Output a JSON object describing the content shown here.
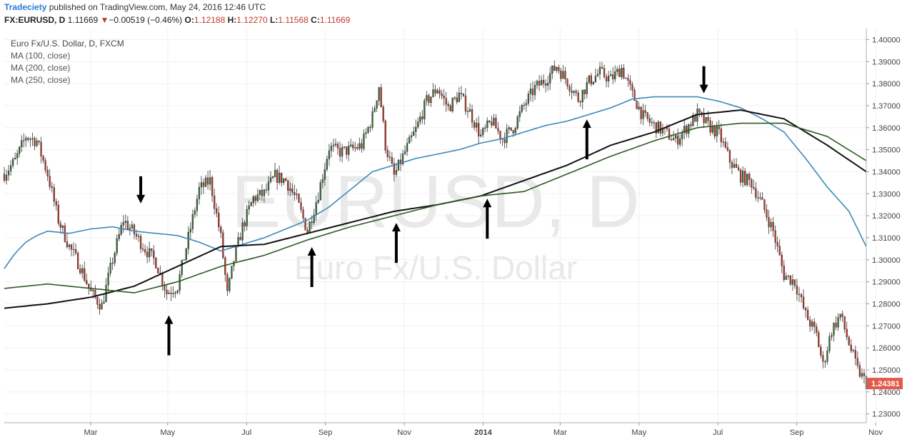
{
  "header": {
    "brand": "Tradeciety",
    "published": "published on TradingView.com, May 24, 2016 12:46 UTC",
    "symbol": "FX:EURUSD, D",
    "last": "1.11669",
    "change": "−0.00519 (−0.46%)",
    "o_label": "O:",
    "o_value": "1.12188",
    "h_label": "H:",
    "h_value": "1.12270",
    "l_label": "L:",
    "l_value": "1.11568",
    "c_label": "C:",
    "c_value": "1.11669"
  },
  "legend": {
    "title": "Euro Fx/U.S. Dollar, D, FXCM",
    "ma1": "MA (100, close)",
    "ma2": "MA (200, close)",
    "ma3": "MA (250, close)"
  },
  "watermark": {
    "line1": "EURUSD, D",
    "line2": "Euro Fx/U.S. Dollar"
  },
  "colors": {
    "up": "#3c6e3c",
    "down": "#c0392b",
    "ma100": "#3d8ab8",
    "ma200": "#111111",
    "ma250": "#2e5a22",
    "price_tag": "#e25b4a"
  },
  "chart_data": {
    "type": "line",
    "price_label": "1.24381",
    "y_ticks": [
      "1.40000",
      "1.39000",
      "1.38000",
      "1.37000",
      "1.36000",
      "1.35000",
      "1.34000",
      "1.33000",
      "1.32000",
      "1.31000",
      "1.30000",
      "1.29000",
      "1.28000",
      "1.27000",
      "1.26000",
      "1.25000",
      "1.24000",
      "1.23000"
    ],
    "ylim": [
      1.226,
      1.405
    ],
    "x_ticks": [
      "Mar",
      "May",
      "Jul",
      "Sep",
      "Nov",
      "2014",
      "Mar",
      "May",
      "Jul",
      "Sep",
      "Nov"
    ],
    "grid": true,
    "series": [
      {
        "name": "MA (100, close)",
        "points": [
          [
            0,
            1.296
          ],
          [
            5,
            1.303
          ],
          [
            10,
            1.308
          ],
          [
            15,
            1.311
          ],
          [
            20,
            1.313
          ],
          [
            30,
            1.312
          ],
          [
            40,
            1.314
          ],
          [
            50,
            1.315
          ],
          [
            60,
            1.313
          ],
          [
            70,
            1.312
          ],
          [
            80,
            1.311
          ],
          [
            90,
            1.308
          ],
          [
            100,
            1.304
          ],
          [
            110,
            1.307
          ],
          [
            120,
            1.31
          ],
          [
            130,
            1.314
          ],
          [
            140,
            1.318
          ],
          [
            150,
            1.324
          ],
          [
            160,
            1.332
          ],
          [
            170,
            1.34
          ],
          [
            180,
            1.343
          ],
          [
            190,
            1.346
          ],
          [
            200,
            1.348
          ],
          [
            210,
            1.35
          ],
          [
            220,
            1.353
          ],
          [
            230,
            1.355
          ],
          [
            240,
            1.358
          ],
          [
            250,
            1.361
          ],
          [
            260,
            1.363
          ],
          [
            270,
            1.366
          ],
          [
            280,
            1.369
          ],
          [
            290,
            1.373
          ],
          [
            300,
            1.374
          ],
          [
            310,
            1.374
          ],
          [
            320,
            1.374
          ],
          [
            330,
            1.372
          ],
          [
            340,
            1.369
          ],
          [
            350,
            1.364
          ],
          [
            360,
            1.358
          ],
          [
            370,
            1.346
          ],
          [
            380,
            1.333
          ],
          [
            390,
            1.322
          ],
          [
            398,
            1.306
          ]
        ]
      },
      {
        "name": "MA (200, close)",
        "points": [
          [
            0,
            1.278
          ],
          [
            20,
            1.28
          ],
          [
            40,
            1.283
          ],
          [
            60,
            1.288
          ],
          [
            80,
            1.297
          ],
          [
            100,
            1.306
          ],
          [
            120,
            1.307
          ],
          [
            140,
            1.312
          ],
          [
            160,
            1.317
          ],
          [
            180,
            1.322
          ],
          [
            200,
            1.325
          ],
          [
            220,
            1.329
          ],
          [
            240,
            1.336
          ],
          [
            260,
            1.343
          ],
          [
            280,
            1.352
          ],
          [
            300,
            1.358
          ],
          [
            320,
            1.366
          ],
          [
            340,
            1.368
          ],
          [
            360,
            1.364
          ],
          [
            380,
            1.352
          ],
          [
            398,
            1.34
          ]
        ]
      },
      {
        "name": "MA (250, close)",
        "points": [
          [
            0,
            1.287
          ],
          [
            20,
            1.289
          ],
          [
            40,
            1.287
          ],
          [
            60,
            1.285
          ],
          [
            80,
            1.29
          ],
          [
            100,
            1.297
          ],
          [
            120,
            1.302
          ],
          [
            140,
            1.309
          ],
          [
            160,
            1.315
          ],
          [
            180,
            1.32
          ],
          [
            200,
            1.325
          ],
          [
            220,
            1.329
          ],
          [
            240,
            1.331
          ],
          [
            260,
            1.339
          ],
          [
            280,
            1.347
          ],
          [
            300,
            1.354
          ],
          [
            320,
            1.36
          ],
          [
            340,
            1.362
          ],
          [
            360,
            1.362
          ],
          [
            380,
            1.356
          ],
          [
            398,
            1.345
          ]
        ]
      },
      {
        "name": "Price",
        "points": [
          [
            0,
            1.339
          ],
          [
            5,
            1.345
          ],
          [
            10,
            1.356
          ],
          [
            15,
            1.354
          ],
          [
            20,
            1.339
          ],
          [
            25,
            1.318
          ],
          [
            30,
            1.306
          ],
          [
            35,
            1.297
          ],
          [
            40,
            1.285
          ],
          [
            45,
            1.279
          ],
          [
            50,
            1.3
          ],
          [
            55,
            1.318
          ],
          [
            60,
            1.312
          ],
          [
            65,
            1.305
          ],
          [
            70,
            1.299
          ],
          [
            75,
            1.285
          ],
          [
            80,
            1.288
          ],
          [
            85,
            1.31
          ],
          [
            90,
            1.332
          ],
          [
            95,
            1.336
          ],
          [
            100,
            1.31
          ],
          [
            103,
            1.284
          ],
          [
            106,
            1.3
          ],
          [
            110,
            1.315
          ],
          [
            115,
            1.328
          ],
          [
            120,
            1.33
          ],
          [
            125,
            1.338
          ],
          [
            130,
            1.336
          ],
          [
            135,
            1.327
          ],
          [
            140,
            1.313
          ],
          [
            145,
            1.33
          ],
          [
            150,
            1.351
          ],
          [
            155,
            1.349
          ],
          [
            160,
            1.35
          ],
          [
            165,
            1.352
          ],
          [
            170,
            1.365
          ],
          [
            173,
            1.379
          ],
          [
            176,
            1.352
          ],
          [
            180,
            1.338
          ],
          [
            185,
            1.349
          ],
          [
            190,
            1.359
          ],
          [
            195,
            1.372
          ],
          [
            200,
            1.378
          ],
          [
            205,
            1.369
          ],
          [
            210,
            1.375
          ],
          [
            215,
            1.367
          ],
          [
            220,
            1.356
          ],
          [
            225,
            1.363
          ],
          [
            230,
            1.355
          ],
          [
            235,
            1.36
          ],
          [
            240,
            1.37
          ],
          [
            245,
            1.378
          ],
          [
            250,
            1.382
          ],
          [
            255,
            1.388
          ],
          [
            260,
            1.381
          ],
          [
            265,
            1.373
          ],
          [
            270,
            1.381
          ],
          [
            275,
            1.385
          ],
          [
            280,
            1.382
          ],
          [
            285,
            1.387
          ],
          [
            290,
            1.375
          ],
          [
            295,
            1.365
          ],
          [
            300,
            1.361
          ],
          [
            305,
            1.358
          ],
          [
            310,
            1.354
          ],
          [
            315,
            1.36
          ],
          [
            320,
            1.366
          ],
          [
            325,
            1.361
          ],
          [
            330,
            1.357
          ],
          [
            335,
            1.345
          ],
          [
            340,
            1.338
          ],
          [
            345,
            1.335
          ],
          [
            350,
            1.325
          ],
          [
            355,
            1.313
          ],
          [
            360,
            1.293
          ],
          [
            365,
            1.29
          ],
          [
            370,
            1.275
          ],
          [
            375,
            1.266
          ],
          [
            378,
            1.252
          ],
          [
            382,
            1.268
          ],
          [
            386,
            1.275
          ],
          [
            390,
            1.262
          ],
          [
            394,
            1.25
          ],
          [
            398,
            1.244
          ]
        ]
      }
    ],
    "annotations": [
      {
        "type": "arrow-down",
        "index": 63,
        "price": 1.323
      },
      {
        "type": "arrow-up",
        "index": 76,
        "price": 1.278
      },
      {
        "type": "arrow-up",
        "index": 142,
        "price": 1.309
      },
      {
        "type": "arrow-up",
        "index": 181,
        "price": 1.32
      },
      {
        "type": "arrow-up",
        "index": 223,
        "price": 1.331
      },
      {
        "type": "arrow-up",
        "index": 269,
        "price": 1.367
      },
      {
        "type": "arrow-down",
        "index": 323,
        "price": 1.373
      }
    ]
  }
}
